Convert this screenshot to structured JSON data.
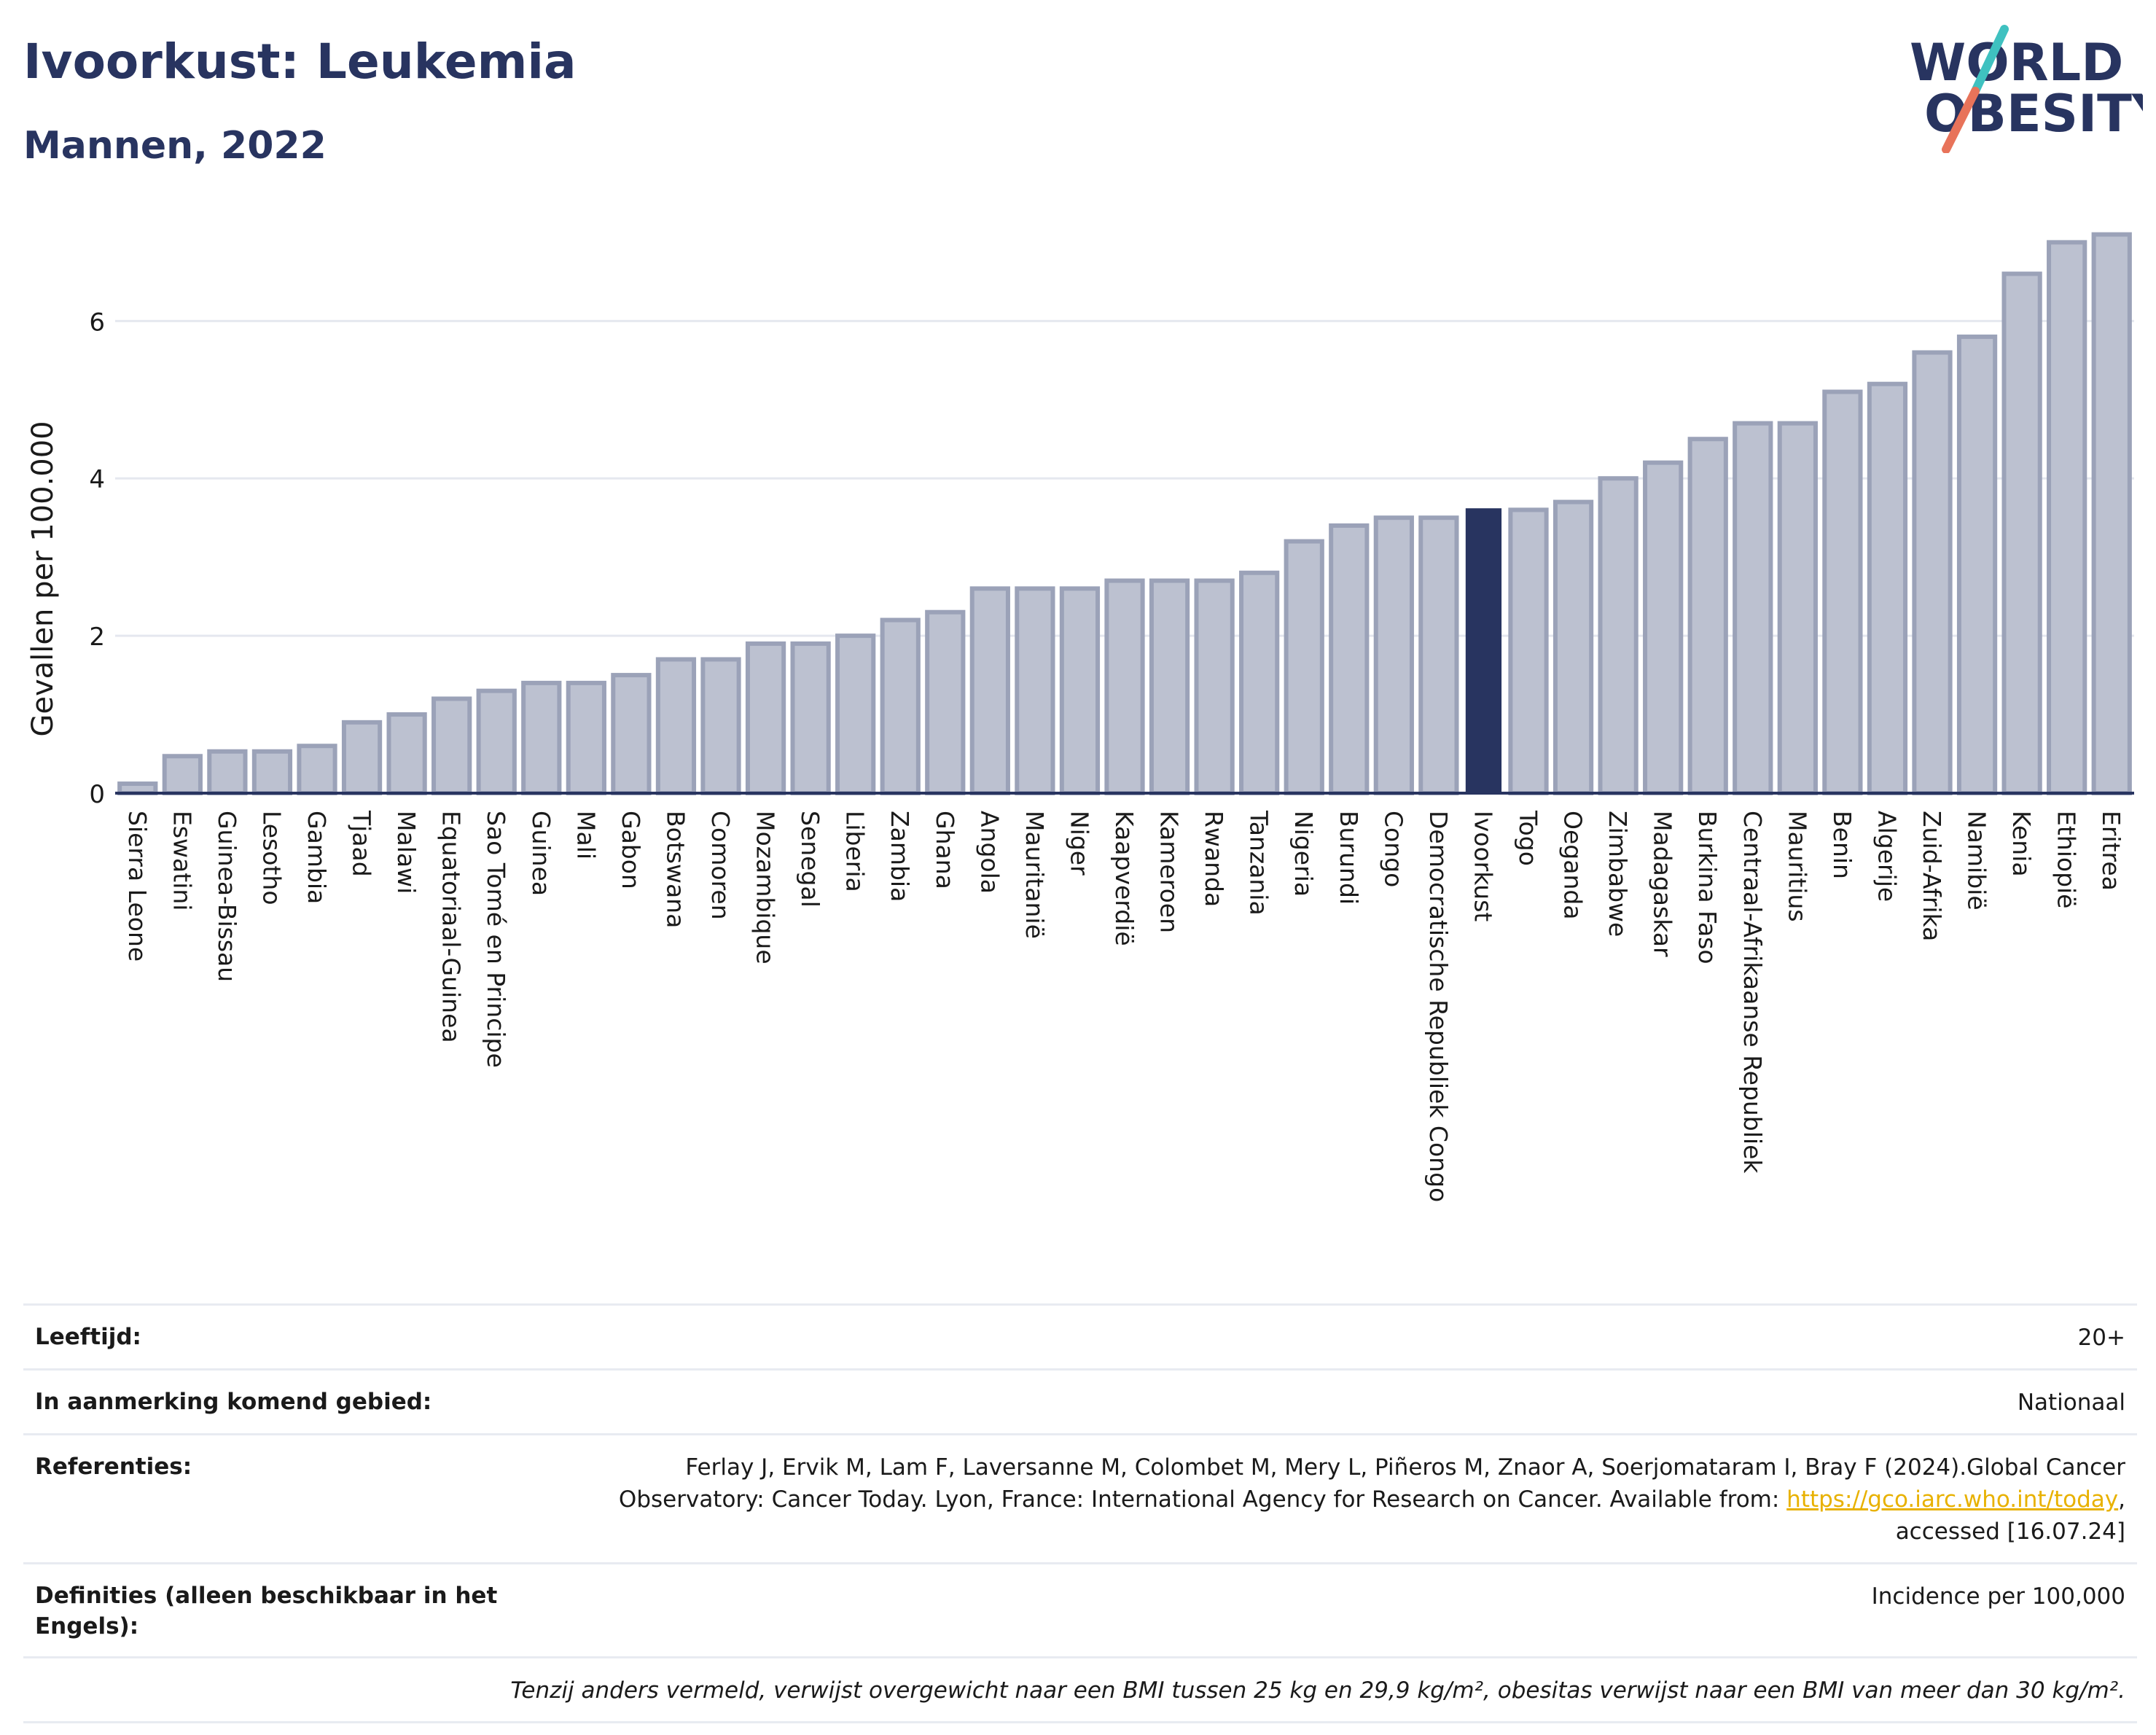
{
  "header": {
    "title": "Ivoorkust: Leukemia",
    "subtitle": "Mannen, 2022",
    "logo_line1": "WORLD",
    "logo_line2": "OBESITY"
  },
  "colors": {
    "title": "#283460",
    "bar": "#bcc1d0",
    "bar_border": "#9ba2b8",
    "highlight": "#283460",
    "grid": "#e5e8ef",
    "link": "#e8b100",
    "logo_teal": "#3fc1c0",
    "logo_coral": "#e8735a"
  },
  "chart_data": {
    "type": "bar",
    "ylabel": "Gevallen per 100.000",
    "ylim": [
      0,
      7.3
    ],
    "yticks": [
      0,
      2,
      4,
      6
    ],
    "grid": true,
    "highlight": "Ivoorkust",
    "categories": [
      "Sierra Leone",
      "Eswatini",
      "Guinea-Bissau",
      "Lesotho",
      "Gambia",
      "Tjaad",
      "Malawi",
      "Equatoriaal-Guinea",
      "Sao Tomé en Principe",
      "Guinea",
      "Mali",
      "Gabon",
      "Botswana",
      "Comoren",
      "Mozambique",
      "Senegal",
      "Liberia",
      "Zambia",
      "Ghana",
      "Angola",
      "Mauritanië",
      "Niger",
      "Kaapverdië",
      "Kameroen",
      "Rwanda",
      "Tanzania",
      "Nigeria",
      "Burundi",
      "Congo",
      "Democratische Republiek Congo",
      "Ivoorkust",
      "Togo",
      "Oeganda",
      "Zimbabwe",
      "Madagaskar",
      "Burkina Faso",
      "Centraal-Afrikaanse Republiek",
      "Mauritius",
      "Benin",
      "Algerije",
      "Zuid-Afrika",
      "Namibië",
      "Kenia",
      "Ethiopië",
      "Eritrea"
    ],
    "values": [
      0.12,
      0.47,
      0.53,
      0.53,
      0.6,
      0.9,
      1.0,
      1.2,
      1.3,
      1.4,
      1.4,
      1.5,
      1.7,
      1.7,
      1.9,
      1.9,
      2.0,
      2.2,
      2.3,
      2.6,
      2.6,
      2.6,
      2.7,
      2.7,
      2.7,
      2.8,
      3.2,
      3.4,
      3.5,
      3.5,
      3.62,
      3.6,
      3.7,
      4.0,
      4.2,
      4.5,
      4.7,
      4.7,
      5.1,
      5.2,
      5.6,
      5.8,
      6.6,
      7.0,
      7.1
    ]
  },
  "info": {
    "age_label": "Leeftijd:",
    "age_value": "20+",
    "area_label": "In aanmerking komend gebied:",
    "area_value": "Nationaal",
    "ref_label": "Referenties:",
    "ref_text1": "Ferlay J, Ervik M, Lam F, Laversanne M, Colombet M, Mery L, Piñeros M, Znaor A, Soerjomataram I, Bray F (2024).Global Cancer",
    "ref_text2": "Observatory: Cancer Today. Lyon, France: International Agency for Research on Cancer. Available from: ",
    "ref_link": "https://gco.iarc.who.int/today",
    "ref_text3": "accessed [16.07.24]",
    "def_label": "Definities (alleen beschikbaar in het Engels):",
    "def_value": "Incidence per 100,000",
    "note": "Tenzij anders vermeld, verwijst overgewicht naar een BMI tussen 25 kg en 29,9 kg/m², obesitas verwijst naar een BMI van meer dan 30 kg/m²."
  }
}
